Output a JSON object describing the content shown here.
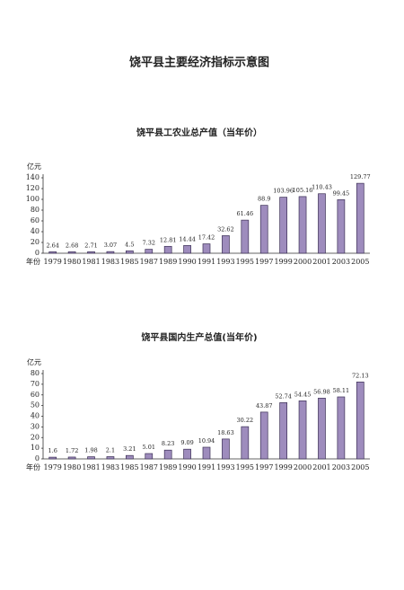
{
  "title": "饶平县主要经济指标示意图",
  "chart_data": [
    {
      "type": "bar",
      "title": "饶平县工农业总产值（当年价）",
      "y_label": "亿元",
      "x_label": "年份",
      "categories": [
        "1979",
        "1980",
        "1981",
        "1983",
        "1985",
        "1987",
        "1989",
        "1990",
        "1991",
        "1993",
        "1995",
        "1997",
        "1999",
        "2000",
        "2001",
        "2003",
        "2005"
      ],
      "values": [
        2.64,
        2.68,
        2.71,
        3.07,
        4.5,
        7.32,
        12.81,
        14.44,
        17.42,
        32.62,
        61.46,
        88.9,
        103.96,
        105.16,
        110.43,
        99.45,
        129.77
      ],
      "color": "#9e8cbd",
      "ylim": [
        0,
        140
      ],
      "yticks": [
        0,
        20,
        40,
        60,
        80,
        100,
        120,
        140
      ]
    },
    {
      "type": "bar",
      "title": "饶平县国内生产总值(当年价)",
      "y_label": "亿元",
      "x_label": "年份",
      "categories": [
        "1979",
        "1980",
        "1981",
        "1983",
        "1985",
        "1987",
        "1989",
        "1990",
        "1991",
        "1993",
        "1995",
        "1997",
        "1999",
        "2000",
        "2001",
        "2003",
        "2005"
      ],
      "values": [
        1.6,
        1.72,
        1.98,
        2.1,
        3.21,
        5.01,
        8.23,
        9.09,
        10.94,
        18.63,
        30.22,
        43.87,
        52.74,
        54.45,
        56.98,
        58.11,
        72.13
      ],
      "color": "#9e8cbd",
      "ylim": [
        0,
        80
      ],
      "yticks": [
        0,
        10,
        20,
        30,
        40,
        50,
        60,
        70,
        80
      ]
    }
  ]
}
